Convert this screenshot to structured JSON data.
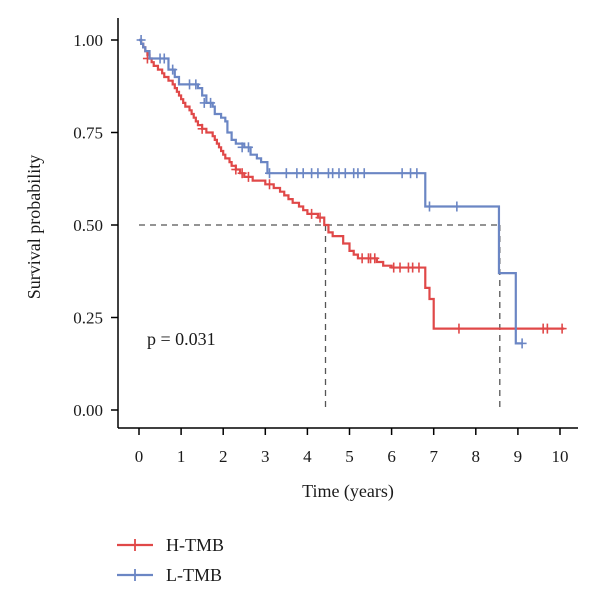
{
  "chart_data": {
    "type": "line",
    "subtype": "kaplan-meier",
    "title": "",
    "xlabel": "Time (years)",
    "ylabel": "Survival probability",
    "xlim": [
      0,
      10
    ],
    "ylim": [
      0,
      1
    ],
    "xticks": [
      "0",
      "1",
      "2",
      "3",
      "4",
      "5",
      "6",
      "7",
      "8",
      "9",
      "10"
    ],
    "yticks": [
      "0.00",
      "0.25",
      "0.50",
      "0.75",
      "1.00"
    ],
    "grid": false,
    "legend_position": "bottom-left",
    "annotation": "p = 0.031",
    "median_reference_line": 0.5,
    "medians": [
      {
        "series": "H-TMB",
        "x": 4.43
      },
      {
        "series": "L-TMB",
        "x": 8.57
      }
    ],
    "series": [
      {
        "name": "H-TMB",
        "color": "#e04848",
        "steps": [
          [
            0.0,
            1.0
          ],
          [
            0.05,
            0.99
          ],
          [
            0.1,
            0.98
          ],
          [
            0.15,
            0.97
          ],
          [
            0.2,
            0.96
          ],
          [
            0.25,
            0.95
          ],
          [
            0.3,
            0.94
          ],
          [
            0.35,
            0.93
          ],
          [
            0.45,
            0.92
          ],
          [
            0.55,
            0.91
          ],
          [
            0.6,
            0.9
          ],
          [
            0.7,
            0.89
          ],
          [
            0.8,
            0.88
          ],
          [
            0.85,
            0.87
          ],
          [
            0.9,
            0.86
          ],
          [
            0.95,
            0.85
          ],
          [
            1.0,
            0.84
          ],
          [
            1.05,
            0.83
          ],
          [
            1.1,
            0.82
          ],
          [
            1.2,
            0.81
          ],
          [
            1.25,
            0.8
          ],
          [
            1.3,
            0.79
          ],
          [
            1.35,
            0.78
          ],
          [
            1.4,
            0.77
          ],
          [
            1.5,
            0.76
          ],
          [
            1.6,
            0.75
          ],
          [
            1.75,
            0.74
          ],
          [
            1.8,
            0.73
          ],
          [
            1.85,
            0.72
          ],
          [
            1.9,
            0.71
          ],
          [
            1.95,
            0.7
          ],
          [
            2.0,
            0.69
          ],
          [
            2.05,
            0.68
          ],
          [
            2.15,
            0.67
          ],
          [
            2.2,
            0.66
          ],
          [
            2.3,
            0.65
          ],
          [
            2.4,
            0.64
          ],
          [
            2.5,
            0.63
          ],
          [
            2.7,
            0.62
          ],
          [
            3.0,
            0.61
          ],
          [
            3.2,
            0.6
          ],
          [
            3.35,
            0.59
          ],
          [
            3.45,
            0.58
          ],
          [
            3.55,
            0.57
          ],
          [
            3.65,
            0.56
          ],
          [
            3.8,
            0.55
          ],
          [
            3.9,
            0.54
          ],
          [
            4.0,
            0.53
          ],
          [
            4.25,
            0.52
          ],
          [
            4.4,
            0.5
          ],
          [
            4.5,
            0.48
          ],
          [
            4.6,
            0.47
          ],
          [
            4.85,
            0.45
          ],
          [
            5.0,
            0.43
          ],
          [
            5.1,
            0.42
          ],
          [
            5.2,
            0.41
          ],
          [
            5.65,
            0.4
          ],
          [
            5.8,
            0.39
          ],
          [
            6.0,
            0.385
          ],
          [
            6.8,
            0.33
          ],
          [
            6.9,
            0.3
          ],
          [
            7.0,
            0.22
          ],
          [
            10.1,
            0.22
          ]
        ],
        "censored": [
          [
            0.2,
            0.95
          ],
          [
            1.5,
            0.76
          ],
          [
            2.3,
            0.65
          ],
          [
            2.45,
            0.64
          ],
          [
            2.6,
            0.63
          ],
          [
            3.1,
            0.61
          ],
          [
            4.1,
            0.53
          ],
          [
            4.3,
            0.52
          ],
          [
            5.3,
            0.41
          ],
          [
            5.45,
            0.41
          ],
          [
            5.5,
            0.41
          ],
          [
            5.6,
            0.41
          ],
          [
            6.05,
            0.385
          ],
          [
            6.2,
            0.385
          ],
          [
            6.4,
            0.385
          ],
          [
            6.5,
            0.385
          ],
          [
            6.65,
            0.385
          ],
          [
            7.6,
            0.22
          ],
          [
            9.6,
            0.22
          ],
          [
            9.7,
            0.22
          ],
          [
            10.05,
            0.22
          ]
        ]
      },
      {
        "name": "L-TMB",
        "color": "#6b86c4",
        "steps": [
          [
            0.0,
            1.0
          ],
          [
            0.05,
            0.99
          ],
          [
            0.1,
            0.98
          ],
          [
            0.15,
            0.97
          ],
          [
            0.25,
            0.95
          ],
          [
            0.7,
            0.92
          ],
          [
            0.85,
            0.9
          ],
          [
            0.95,
            0.88
          ],
          [
            1.4,
            0.87
          ],
          [
            1.5,
            0.85
          ],
          [
            1.6,
            0.83
          ],
          [
            1.75,
            0.82
          ],
          [
            1.8,
            0.8
          ],
          [
            1.95,
            0.79
          ],
          [
            2.05,
            0.78
          ],
          [
            2.1,
            0.75
          ],
          [
            2.2,
            0.73
          ],
          [
            2.3,
            0.72
          ],
          [
            2.5,
            0.71
          ],
          [
            2.65,
            0.69
          ],
          [
            2.8,
            0.68
          ],
          [
            2.9,
            0.67
          ],
          [
            3.05,
            0.64
          ],
          [
            6.8,
            0.55
          ],
          [
            8.55,
            0.37
          ],
          [
            8.95,
            0.18
          ],
          [
            9.1,
            0.18
          ]
        ],
        "censored": [
          [
            0.05,
            1.0
          ],
          [
            0.5,
            0.95
          ],
          [
            0.6,
            0.95
          ],
          [
            0.8,
            0.92
          ],
          [
            1.2,
            0.88
          ],
          [
            1.35,
            0.88
          ],
          [
            1.55,
            0.83
          ],
          [
            1.7,
            0.83
          ],
          [
            2.45,
            0.71
          ],
          [
            2.6,
            0.71
          ],
          [
            3.1,
            0.64
          ],
          [
            3.5,
            0.64
          ],
          [
            3.75,
            0.64
          ],
          [
            3.9,
            0.64
          ],
          [
            4.1,
            0.64
          ],
          [
            4.25,
            0.64
          ],
          [
            4.5,
            0.64
          ],
          [
            4.6,
            0.64
          ],
          [
            4.75,
            0.64
          ],
          [
            4.9,
            0.64
          ],
          [
            5.1,
            0.64
          ],
          [
            5.2,
            0.64
          ],
          [
            5.35,
            0.64
          ],
          [
            6.25,
            0.64
          ],
          [
            6.45,
            0.64
          ],
          [
            6.6,
            0.64
          ],
          [
            6.9,
            0.55
          ],
          [
            7.55,
            0.55
          ],
          [
            9.1,
            0.18
          ]
        ]
      }
    ]
  }
}
